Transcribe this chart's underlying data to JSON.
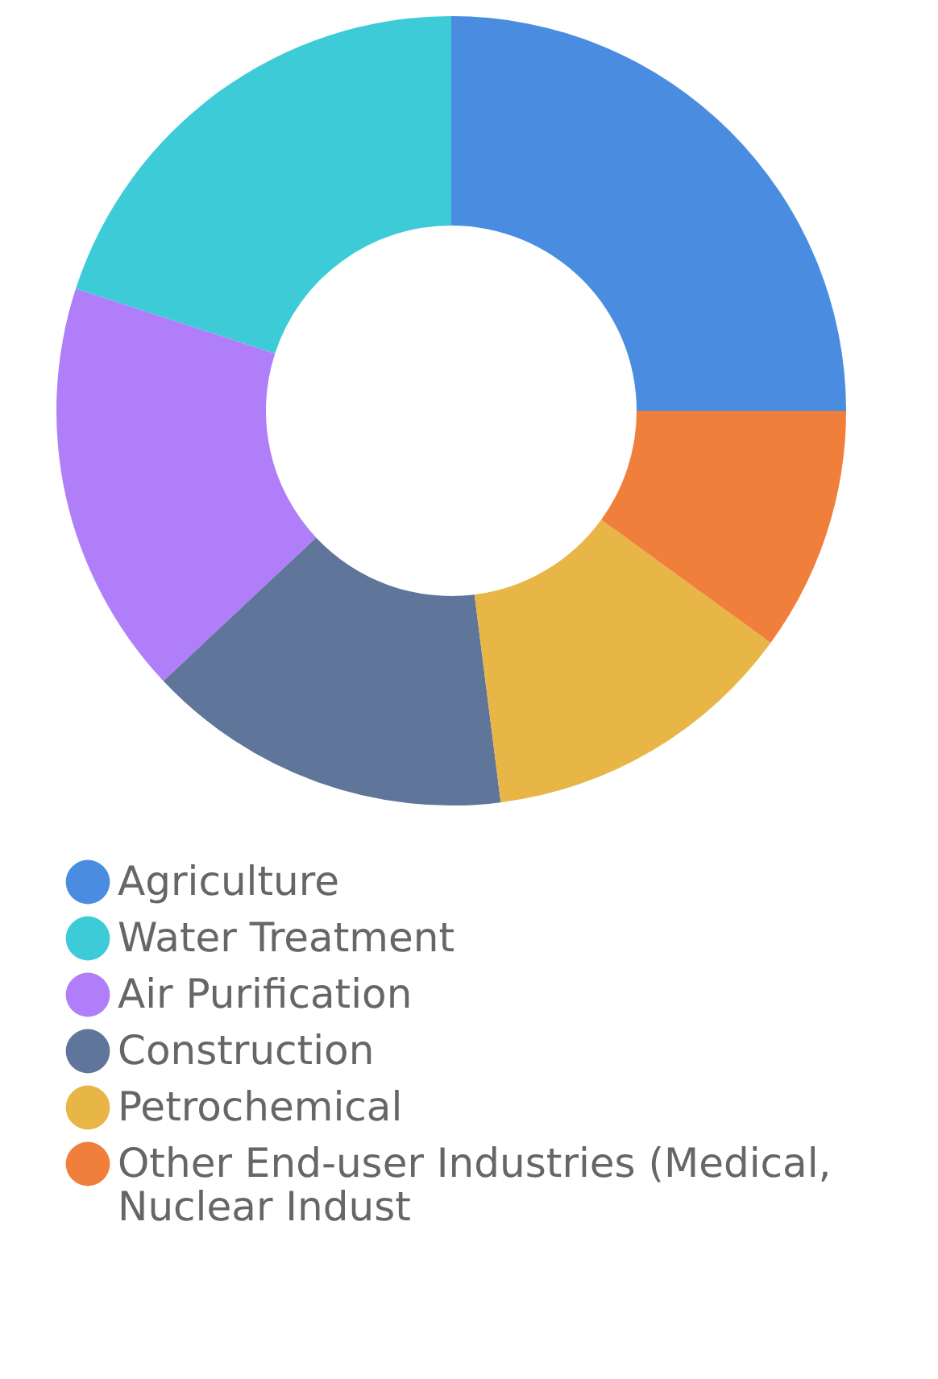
{
  "chart_data": {
    "type": "donut",
    "categories": [
      "Agriculture",
      "Water Treatment",
      "Air Purification",
      "Construction",
      "Petrochemical",
      "Other End-user Industries (Medical, Nuclear Indust"
    ],
    "values": [
      25,
      20,
      17,
      15,
      13,
      10
    ],
    "colors": [
      "#4a8de0",
      "#3ecbd8",
      "#b07ef8",
      "#5f7599",
      "#e8b547",
      "#f07f3c"
    ],
    "legend": "bottom"
  }
}
